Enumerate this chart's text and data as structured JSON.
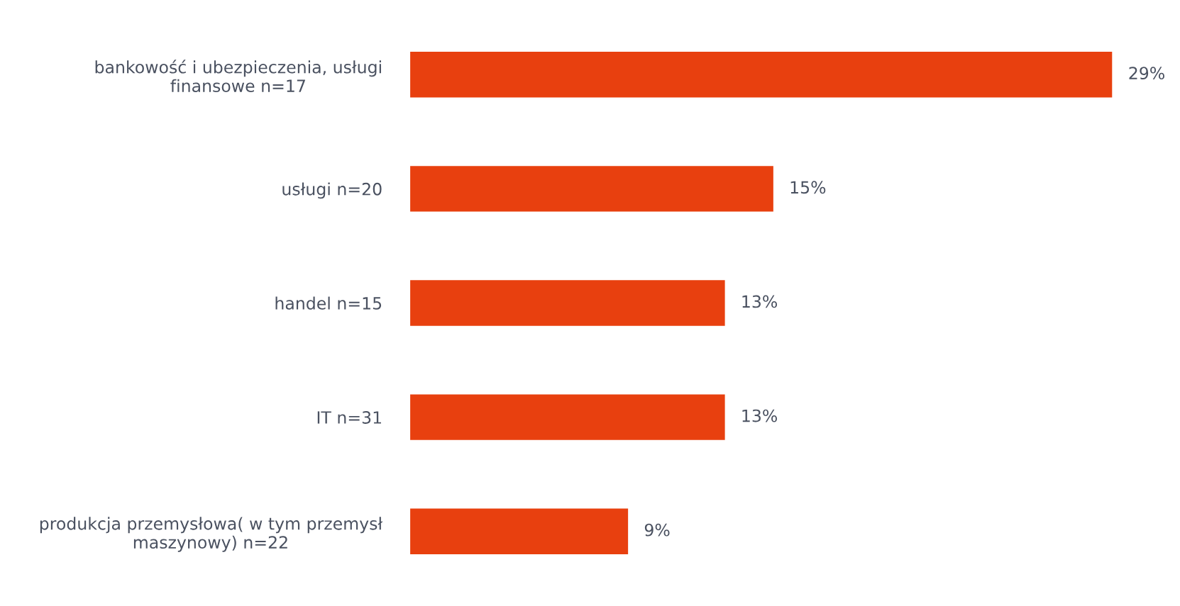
{
  "chart_data": {
    "type": "bar",
    "orientation": "horizontal",
    "categories": [
      "bankowość i ubezpieczenia, usługi\nfinansowe n=17",
      "usługi n=20",
      "handel n=15",
      "IT n=31",
      "produkcja przemysłowa( w tym przemysł\nmaszynowy) n=22"
    ],
    "values": [
      29,
      15,
      13,
      13,
      9
    ],
    "value_labels": [
      "29%",
      "15%",
      "13%",
      "13%",
      "9%"
    ],
    "color": "#e8400f",
    "grid": false,
    "legend": false
  }
}
